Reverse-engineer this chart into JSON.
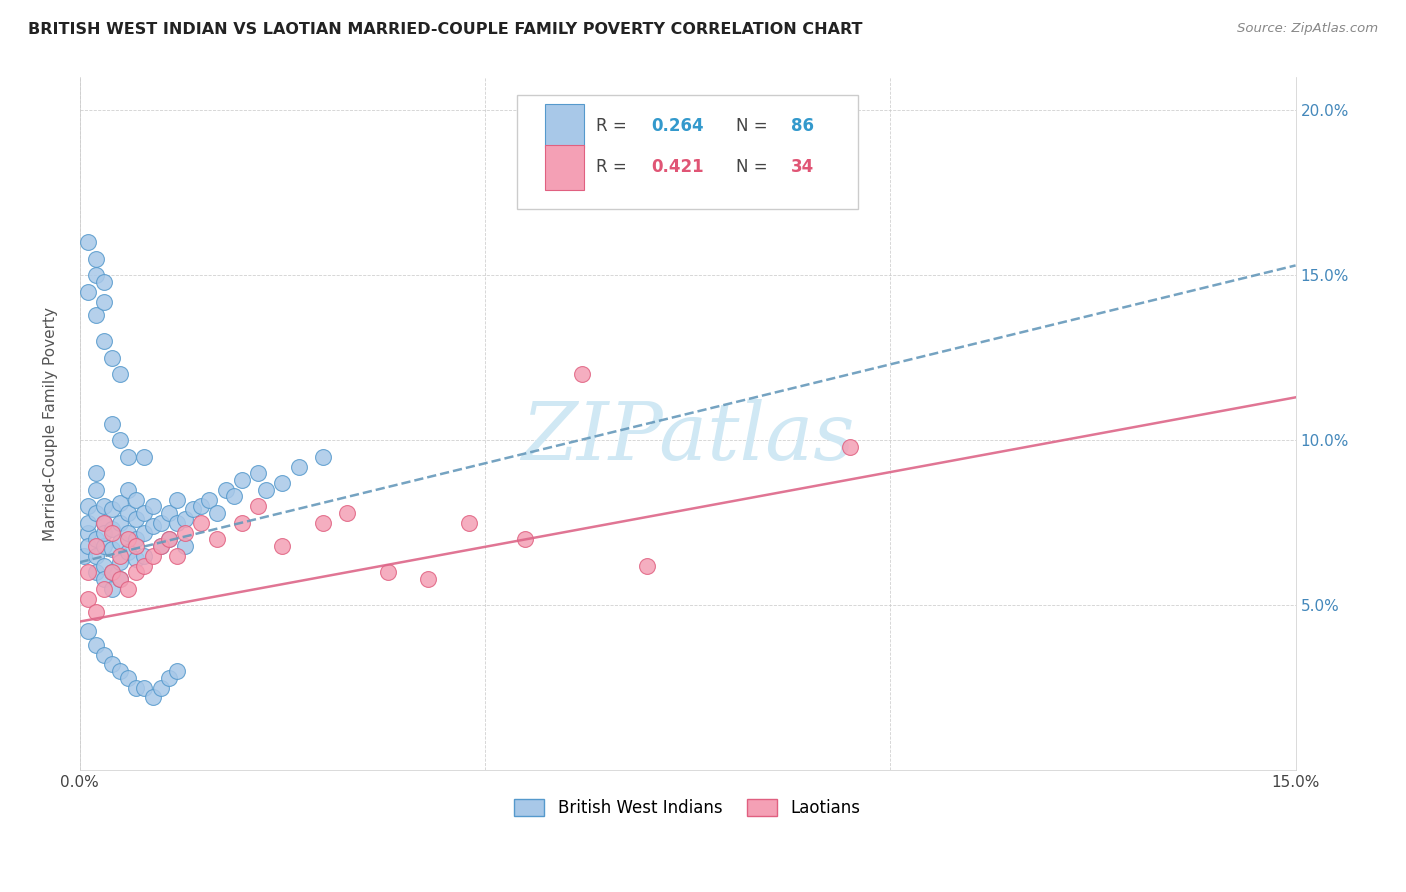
{
  "title": "BRITISH WEST INDIAN VS LAOTIAN MARRIED-COUPLE FAMILY POVERTY CORRELATION CHART",
  "source": "Source: ZipAtlas.com",
  "ylabel": "Married-Couple Family Poverty",
  "xlim": [
    0.0,
    0.15
  ],
  "ylim": [
    0.0,
    0.21
  ],
  "blue_color": "#a8c8e8",
  "pink_color": "#f4a0b5",
  "blue_edge_color": "#5599cc",
  "pink_edge_color": "#e06080",
  "blue_line_color": "#6699bb",
  "pink_line_color": "#dd6688",
  "watermark_color": "#d0e8f4",
  "bwi_x": [
    0.0005,
    0.001,
    0.001,
    0.001,
    0.001,
    0.002,
    0.002,
    0.002,
    0.002,
    0.002,
    0.002,
    0.003,
    0.003,
    0.003,
    0.003,
    0.003,
    0.003,
    0.004,
    0.004,
    0.004,
    0.004,
    0.004,
    0.005,
    0.005,
    0.005,
    0.005,
    0.005,
    0.006,
    0.006,
    0.006,
    0.006,
    0.007,
    0.007,
    0.007,
    0.007,
    0.008,
    0.008,
    0.008,
    0.009,
    0.009,
    0.01,
    0.01,
    0.011,
    0.011,
    0.012,
    0.012,
    0.013,
    0.013,
    0.014,
    0.015,
    0.016,
    0.017,
    0.018,
    0.019,
    0.02,
    0.022,
    0.023,
    0.025,
    0.027,
    0.03,
    0.001,
    0.002,
    0.003,
    0.004,
    0.005,
    0.001,
    0.002,
    0.003,
    0.001,
    0.002,
    0.003,
    0.004,
    0.005,
    0.006,
    0.007,
    0.008,
    0.009,
    0.01,
    0.011,
    0.012,
    0.002,
    0.003,
    0.004,
    0.005,
    0.006,
    0.008
  ],
  "bwi_y": [
    0.065,
    0.08,
    0.072,
    0.068,
    0.075,
    0.085,
    0.078,
    0.07,
    0.065,
    0.06,
    0.09,
    0.062,
    0.068,
    0.075,
    0.08,
    0.058,
    0.072,
    0.06,
    0.067,
    0.073,
    0.079,
    0.055,
    0.063,
    0.069,
    0.075,
    0.081,
    0.058,
    0.066,
    0.072,
    0.078,
    0.085,
    0.064,
    0.07,
    0.076,
    0.082,
    0.072,
    0.078,
    0.065,
    0.074,
    0.08,
    0.075,
    0.068,
    0.078,
    0.07,
    0.075,
    0.082,
    0.076,
    0.068,
    0.079,
    0.08,
    0.082,
    0.078,
    0.085,
    0.083,
    0.088,
    0.09,
    0.085,
    0.087,
    0.092,
    0.095,
    0.145,
    0.138,
    0.13,
    0.125,
    0.12,
    0.16,
    0.15,
    0.142,
    0.042,
    0.038,
    0.035,
    0.032,
    0.03,
    0.028,
    0.025,
    0.025,
    0.022,
    0.025,
    0.028,
    0.03,
    0.155,
    0.148,
    0.105,
    0.1,
    0.095,
    0.095
  ],
  "lao_x": [
    0.001,
    0.001,
    0.002,
    0.002,
    0.003,
    0.003,
    0.004,
    0.004,
    0.005,
    0.005,
    0.006,
    0.006,
    0.007,
    0.007,
    0.008,
    0.009,
    0.01,
    0.011,
    0.012,
    0.013,
    0.015,
    0.017,
    0.02,
    0.022,
    0.025,
    0.03,
    0.033,
    0.038,
    0.043,
    0.048,
    0.055,
    0.062,
    0.07,
    0.095
  ],
  "lao_y": [
    0.052,
    0.06,
    0.048,
    0.068,
    0.055,
    0.075,
    0.06,
    0.072,
    0.058,
    0.065,
    0.055,
    0.07,
    0.06,
    0.068,
    0.062,
    0.065,
    0.068,
    0.07,
    0.065,
    0.072,
    0.075,
    0.07,
    0.075,
    0.08,
    0.068,
    0.075,
    0.078,
    0.06,
    0.058,
    0.075,
    0.07,
    0.12,
    0.062,
    0.098
  ],
  "bwi_line": [
    0.063,
    0.153
  ],
  "lao_line": [
    0.045,
    0.113
  ]
}
